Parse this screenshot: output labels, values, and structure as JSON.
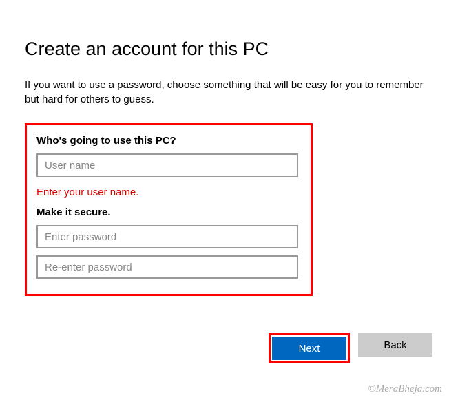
{
  "page": {
    "title": "Create an account for this PC",
    "description": "If you want to use a password, choose something that will be easy for you to remember but hard for others to guess."
  },
  "form": {
    "who_heading": "Who's going to use this PC?",
    "username_placeholder": "User name",
    "username_value": "",
    "error_message": "Enter your user name.",
    "secure_heading": "Make it secure.",
    "password_placeholder": "Enter password",
    "password_value": "",
    "confirm_placeholder": "Re-enter password",
    "confirm_value": ""
  },
  "buttons": {
    "next": "Next",
    "back": "Back"
  },
  "highlight": {
    "color": "#ff0000"
  },
  "watermark": "©MeraBheja.com"
}
